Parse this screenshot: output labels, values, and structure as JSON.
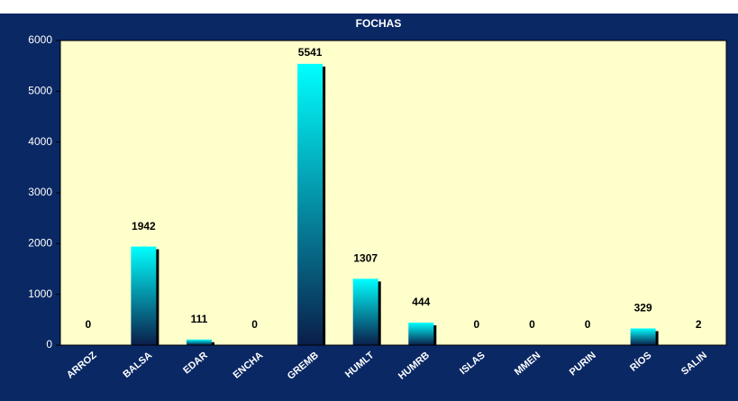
{
  "chart_data": {
    "type": "bar",
    "title": "FOCHAS",
    "categories": [
      "ARROZ",
      "BALSA",
      "EDAR",
      "ENCHA",
      "GREMB",
      "HUMLT",
      "HUMRB",
      "ISLAS",
      "MMEN",
      "PURIN",
      "RÍOS",
      "SALIN"
    ],
    "values": [
      0,
      1942,
      111,
      0,
      5541,
      1307,
      444,
      0,
      0,
      0,
      329,
      2
    ],
    "ylim": [
      0,
      6000
    ],
    "yticks": [
      0,
      1000,
      2000,
      3000,
      4000,
      5000,
      6000
    ],
    "color": "#00ffff"
  }
}
